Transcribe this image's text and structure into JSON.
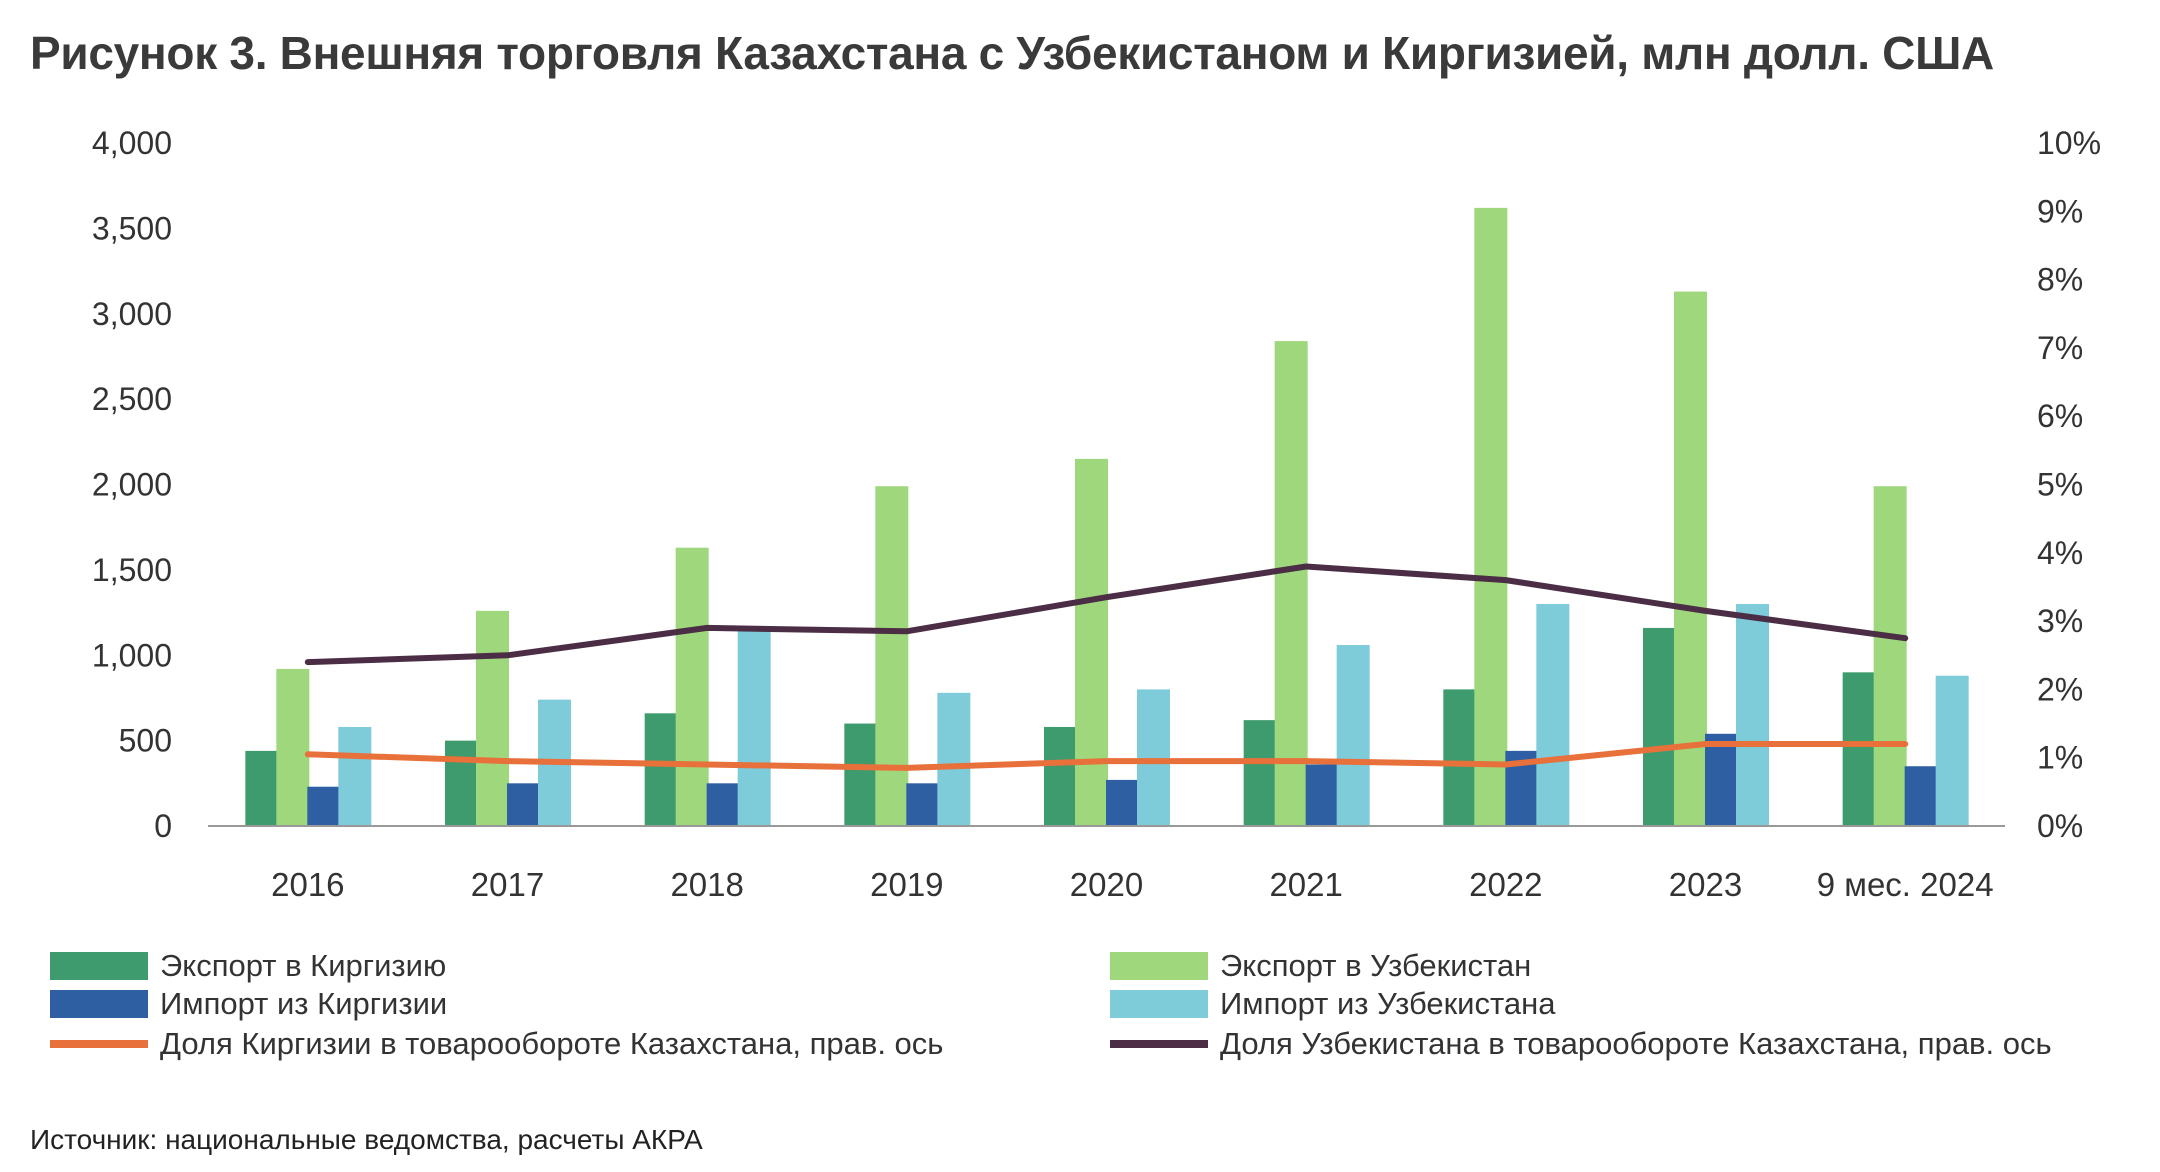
{
  "title": "Рисунок 3. Внешняя торговля Казахстана с Узбекистаном и Киргизией, млн долл. США",
  "source": "Источник: национальные ведомства, расчеты АКРА",
  "colors": {
    "export_kg": "#3d9b6d",
    "export_uz": "#9fd87c",
    "import_kg": "#2e5fa3",
    "import_uz": "#7ecbd9",
    "share_kg": "#e8703a",
    "share_uz": "#4b2e45",
    "axis": "#999999",
    "text": "#333333"
  },
  "chart_data": {
    "type": "bar",
    "categories": [
      "2016",
      "2017",
      "2018",
      "2019",
      "2020",
      "2021",
      "2022",
      "2023",
      "9 мес. 2024"
    ],
    "y_left": {
      "min": 0,
      "max": 4000,
      "step": 500,
      "tick_labels": [
        "0",
        "500",
        "1,000",
        "1,500",
        "2,000",
        "2,500",
        "3,000",
        "3,500",
        "4,000"
      ]
    },
    "y_right": {
      "min": 0,
      "max": 10,
      "step": 1,
      "tick_labels": [
        "0%",
        "1%",
        "2%",
        "3%",
        "4%",
        "5%",
        "6%",
        "7%",
        "8%",
        "9%",
        "10%"
      ]
    },
    "series": [
      {
        "name": "Экспорт в Киргизию",
        "axis": "left",
        "type": "bar",
        "color_key": "export_kg",
        "values": [
          440,
          500,
          660,
          600,
          580,
          620,
          800,
          1160,
          900
        ]
      },
      {
        "name": "Экспорт в Узбекистан",
        "axis": "left",
        "type": "bar",
        "color_key": "export_uz",
        "values": [
          920,
          1260,
          1630,
          1990,
          2150,
          2840,
          3620,
          3130,
          1990
        ]
      },
      {
        "name": "Импорт из Киргизии",
        "axis": "left",
        "type": "bar",
        "color_key": "import_kg",
        "values": [
          230,
          250,
          250,
          250,
          270,
          360,
          440,
          540,
          350
        ]
      },
      {
        "name": "Импорт из Узбекистана",
        "axis": "left",
        "type": "bar",
        "color_key": "import_uz",
        "values": [
          580,
          740,
          1150,
          780,
          800,
          1060,
          1300,
          1300,
          880
        ]
      },
      {
        "name": "Доля Киргизии в товарообороте Казахстана, прав. ось",
        "axis": "right",
        "type": "line",
        "color_key": "share_kg",
        "values": [
          1.05,
          0.95,
          0.9,
          0.85,
          0.95,
          0.95,
          0.9,
          1.2,
          1.2
        ]
      },
      {
        "name": "Доля Узбекистана в товарообороте Казахстана, прав. ось",
        "axis": "right",
        "type": "line",
        "color_key": "share_uz",
        "values": [
          2.4,
          2.5,
          2.9,
          2.85,
          3.35,
          3.8,
          3.6,
          3.15,
          2.75
        ]
      }
    ],
    "grid": false,
    "legend": "bottom"
  }
}
